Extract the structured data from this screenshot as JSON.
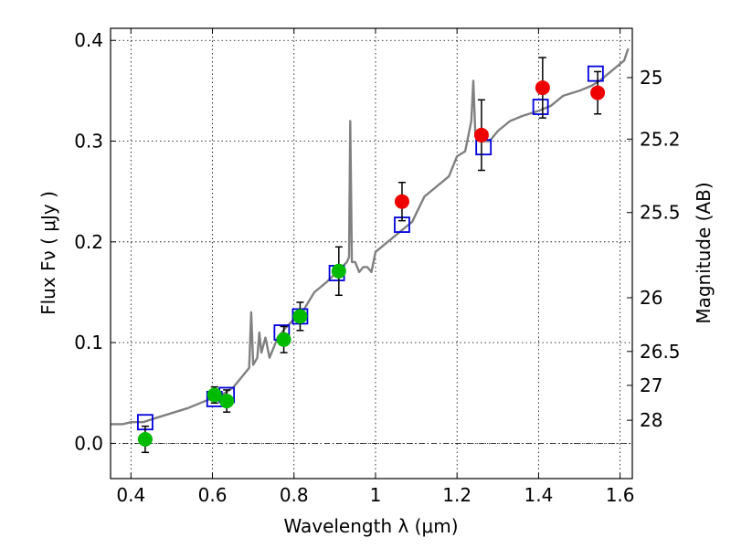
{
  "chart_data": {
    "type": "scatter",
    "xlabel": "Wavelength  λ (μm)",
    "ylabel": "Flux  Fν  ( μJy )",
    "y2label": "Magnitude (AB)",
    "xlim": [
      0.35,
      1.63
    ],
    "ylim": [
      -0.035,
      0.412
    ],
    "grid": true,
    "x_ticks": [
      0.4,
      0.6,
      0.8,
      1.0,
      1.2,
      1.4,
      1.6
    ],
    "x_tick_labels": [
      "0.4",
      "0.6",
      "0.8",
      "1",
      "1.2",
      "1.4",
      "1.6"
    ],
    "y_ticks": [
      0.0,
      0.1,
      0.2,
      0.3,
      0.4
    ],
    "y_tick_labels": [
      "0.0",
      "0.1",
      "0.2",
      "0.3",
      "0.4"
    ],
    "mag_ticks": [
      25,
      25.2,
      25.5,
      26,
      26.5,
      27,
      28
    ],
    "mag_tick_labels": [
      "25",
      "25.2",
      "25.5",
      "26",
      "26.5",
      "27",
      "28"
    ],
    "colors": {
      "spectrum": "#808080",
      "model": "#0000dd",
      "observed_optical": "#00bb00",
      "observed_nir": "#ee0000",
      "errorbar": "#000000"
    },
    "spectrum": [
      [
        0.35,
        0.019
      ],
      [
        0.38,
        0.019
      ],
      [
        0.4,
        0.021
      ],
      [
        0.43,
        0.021
      ],
      [
        0.46,
        0.025
      ],
      [
        0.5,
        0.03
      ],
      [
        0.54,
        0.035
      ],
      [
        0.57,
        0.04
      ],
      [
        0.6,
        0.045
      ],
      [
        0.63,
        0.05
      ],
      [
        0.65,
        0.055
      ],
      [
        0.67,
        0.065
      ],
      [
        0.69,
        0.075
      ],
      [
        0.695,
        0.13
      ],
      [
        0.7,
        0.078
      ],
      [
        0.71,
        0.085
      ],
      [
        0.715,
        0.11
      ],
      [
        0.72,
        0.09
      ],
      [
        0.73,
        0.105
      ],
      [
        0.74,
        0.085
      ],
      [
        0.76,
        0.105
      ],
      [
        0.78,
        0.115
      ],
      [
        0.8,
        0.123
      ],
      [
        0.82,
        0.13
      ],
      [
        0.85,
        0.15
      ],
      [
        0.88,
        0.16
      ],
      [
        0.91,
        0.172
      ],
      [
        0.93,
        0.18
      ],
      [
        0.935,
        0.185
      ],
      [
        0.938,
        0.32
      ],
      [
        0.942,
        0.18
      ],
      [
        0.95,
        0.18
      ],
      [
        0.96,
        0.17
      ],
      [
        0.97,
        0.175
      ],
      [
        0.98,
        0.175
      ],
      [
        0.99,
        0.17
      ],
      [
        1.0,
        0.19
      ],
      [
        1.03,
        0.2
      ],
      [
        1.06,
        0.21
      ],
      [
        1.09,
        0.22
      ],
      [
        1.12,
        0.245
      ],
      [
        1.15,
        0.255
      ],
      [
        1.18,
        0.265
      ],
      [
        1.2,
        0.285
      ],
      [
        1.22,
        0.29
      ],
      [
        1.235,
        0.32
      ],
      [
        1.24,
        0.36
      ],
      [
        1.245,
        0.305
      ],
      [
        1.26,
        0.3
      ],
      [
        1.28,
        0.3
      ],
      [
        1.3,
        0.31
      ],
      [
        1.33,
        0.32
      ],
      [
        1.36,
        0.325
      ],
      [
        1.4,
        0.33
      ],
      [
        1.43,
        0.335
      ],
      [
        1.46,
        0.345
      ],
      [
        1.5,
        0.35
      ],
      [
        1.53,
        0.355
      ],
      [
        1.55,
        0.36
      ],
      [
        1.58,
        0.37
      ],
      [
        1.61,
        0.38
      ],
      [
        1.62,
        0.392
      ]
    ],
    "model_points": [
      {
        "x": 0.435,
        "y": 0.021
      },
      {
        "x": 0.605,
        "y": 0.044
      },
      {
        "x": 0.635,
        "y": 0.048
      },
      {
        "x": 0.77,
        "y": 0.11
      },
      {
        "x": 0.815,
        "y": 0.126
      },
      {
        "x": 0.905,
        "y": 0.169
      },
      {
        "x": 1.065,
        "y": 0.217
      },
      {
        "x": 1.265,
        "y": 0.294
      },
      {
        "x": 1.405,
        "y": 0.334
      },
      {
        "x": 1.54,
        "y": 0.367
      }
    ],
    "observed_points": [
      {
        "x": 0.435,
        "y": 0.004,
        "err": 0.013,
        "group": "optical"
      },
      {
        "x": 0.605,
        "y": 0.048,
        "err": 0.008,
        "group": "optical"
      },
      {
        "x": 0.635,
        "y": 0.042,
        "err": 0.011,
        "group": "optical"
      },
      {
        "x": 0.775,
        "y": 0.103,
        "err": 0.013,
        "group": "optical"
      },
      {
        "x": 0.815,
        "y": 0.126,
        "err": 0.014,
        "group": "optical"
      },
      {
        "x": 0.91,
        "y": 0.171,
        "err": 0.024,
        "group": "optical"
      },
      {
        "x": 1.065,
        "y": 0.24,
        "err": 0.019,
        "group": "nir"
      },
      {
        "x": 1.26,
        "y": 0.306,
        "err": 0.035,
        "group": "nir"
      },
      {
        "x": 1.41,
        "y": 0.353,
        "err": 0.03,
        "group": "nir"
      },
      {
        "x": 1.545,
        "y": 0.348,
        "err": 0.021,
        "group": "nir"
      }
    ]
  }
}
